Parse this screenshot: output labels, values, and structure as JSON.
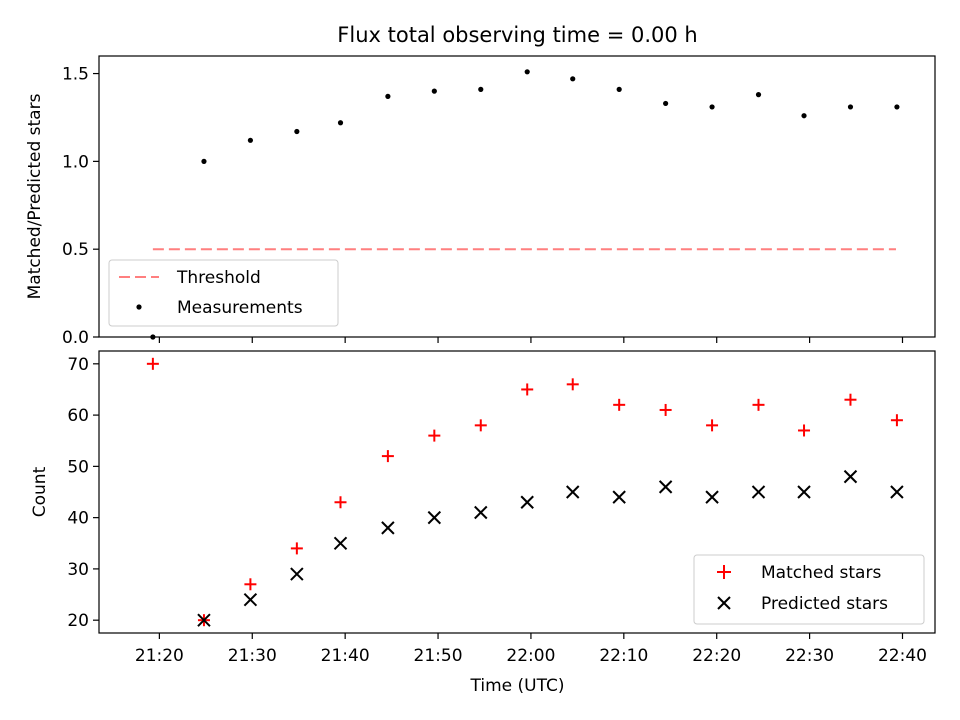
{
  "chart_data": [
    {
      "type": "scatter",
      "title": "Flux total observing time = 0.00 h",
      "xlabel": "",
      "ylabel": "Matched/Predicted stars",
      "ylim": [
        0,
        1.6
      ],
      "y_ticks": [
        "0.0",
        "0.5",
        "1.0",
        "1.5"
      ],
      "y_tick_values": [
        0,
        0.5,
        1.0,
        1.5
      ],
      "x_ticks": [
        "21:20",
        "21:30",
        "21:40",
        "21:50",
        "22:00",
        "22:10",
        "22:20",
        "22:30",
        "22:40"
      ],
      "x_tick_values_min": [
        80,
        90,
        100,
        110,
        120,
        130,
        140,
        150,
        160
      ],
      "xlim_min": [
        73.5,
        163.5
      ],
      "threshold": {
        "name": "Threshold",
        "value": 0.5,
        "x_range_min": [
          79.3,
          159.3
        ],
        "color": "#ff7f7f"
      },
      "series": [
        {
          "name": "Measurements",
          "color": "#000000",
          "x_min": [
            79.3,
            84.8,
            89.8,
            94.8,
            99.5,
            104.6,
            109.6,
            114.6,
            119.6,
            124.5,
            129.5,
            134.5,
            139.5,
            144.5,
            149.4,
            154.4,
            159.4
          ],
          "values": [
            0.0,
            1.0,
            1.12,
            1.17,
            1.22,
            1.37,
            1.4,
            1.41,
            1.51,
            1.47,
            1.41,
            1.33,
            1.31,
            1.38,
            1.26,
            1.31,
            1.31
          ]
        }
      ],
      "legend": "lower-left"
    },
    {
      "type": "scatter",
      "xlabel": "Time (UTC)",
      "ylabel": "Count",
      "ylim": [
        17.5,
        72.5
      ],
      "y_ticks": [
        "20",
        "30",
        "40",
        "50",
        "60",
        "70"
      ],
      "y_tick_values": [
        20,
        30,
        40,
        50,
        60,
        70
      ],
      "x_ticks": [
        "21:20",
        "21:30",
        "21:40",
        "21:50",
        "22:00",
        "22:10",
        "22:20",
        "22:30",
        "22:40"
      ],
      "x_tick_values_min": [
        80,
        90,
        100,
        110,
        120,
        130,
        140,
        150,
        160
      ],
      "xlim_min": [
        73.5,
        163.5
      ],
      "series": [
        {
          "name": "Matched stars",
          "marker": "plus",
          "color": "#ff0000",
          "x_min": [
            79.3,
            84.8,
            89.8,
            94.8,
            99.5,
            104.6,
            109.6,
            114.6,
            119.6,
            124.5,
            129.5,
            134.5,
            139.5,
            144.5,
            149.4,
            154.4,
            159.4
          ],
          "values": [
            70,
            20,
            27,
            34,
            43,
            52,
            56,
            58,
            65,
            66,
            62,
            61,
            58,
            62,
            57,
            63,
            59
          ]
        },
        {
          "name": "Predicted stars",
          "marker": "x",
          "color": "#000000",
          "x_min": [
            84.8,
            89.8,
            94.8,
            99.5,
            104.6,
            109.6,
            114.6,
            119.6,
            124.5,
            129.5,
            134.5,
            139.5,
            144.5,
            149.4,
            154.4,
            159.4
          ],
          "values": [
            20,
            24,
            29,
            35,
            38,
            40,
            41,
            43,
            45,
            44,
            46,
            44,
            45,
            45,
            48,
            45
          ]
        }
      ],
      "legend": "lower-right"
    }
  ]
}
